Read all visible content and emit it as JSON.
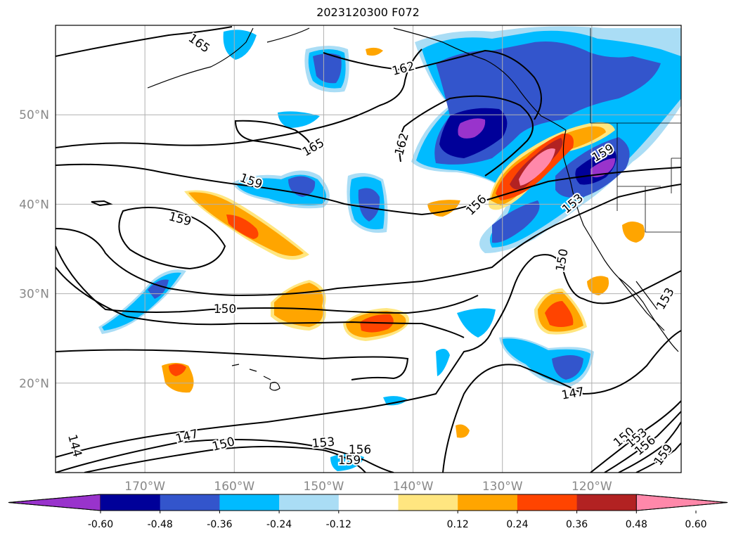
{
  "title": "2023120300 F072",
  "map": {
    "lon_min": -180,
    "lon_max": -110,
    "lat_min": 10,
    "lat_max": 60,
    "grid": true,
    "lon_ticks": [
      "170°W",
      "160°W",
      "150°W",
      "140°W",
      "130°W",
      "120°W"
    ],
    "lat_ticks": [
      "50°N",
      "40°N",
      "30°N",
      "20°N"
    ],
    "contour_labels": [
      "165",
      "162",
      "162",
      "165",
      "159",
      "159",
      "156",
      "153",
      "150",
      "150",
      "147",
      "144",
      "147",
      "150",
      "153",
      "156",
      "159",
      "150",
      "153",
      "156",
      "159",
      "153",
      "159"
    ]
  },
  "colorbar": {
    "tick_labels": [
      "-0.60",
      "-0.48",
      "-0.36",
      "-0.24",
      "-0.12",
      "0.12",
      "0.24",
      "0.36",
      "0.48",
      "0.60"
    ],
    "colors": [
      "#9933cc",
      "#000099",
      "#3355cc",
      "#00bbff",
      "#aaddf5",
      "#ffffff",
      "#ffe680",
      "#ffa500",
      "#ff4400",
      "#b22222",
      "#ff88aa"
    ]
  }
}
